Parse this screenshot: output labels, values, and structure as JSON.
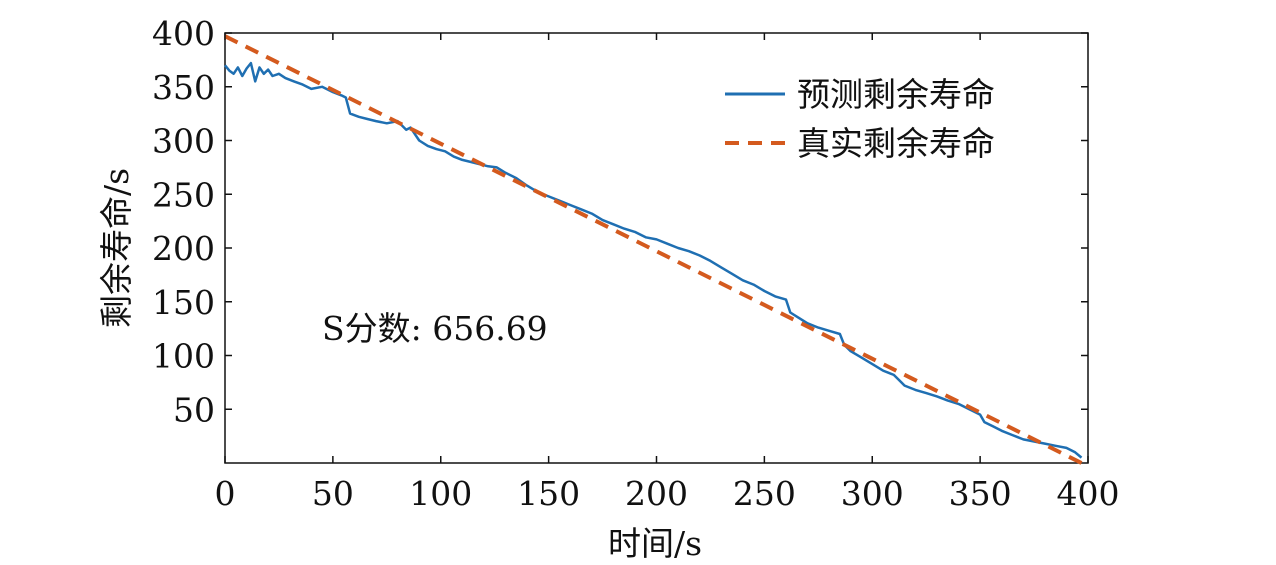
{
  "chart_data": {
    "type": "line",
    "xlabel": "时间/s",
    "ylabel": "剩余寿命/s",
    "xlim": [
      0,
      400
    ],
    "ylim": [
      0,
      400
    ],
    "xticks": [
      "0",
      "50",
      "100",
      "150",
      "200",
      "250",
      "300",
      "350",
      "400"
    ],
    "yticks": [
      "50",
      "100",
      "150",
      "200",
      "250",
      "300",
      "350",
      "400"
    ],
    "grid": false,
    "legend_position": "top-right",
    "annotation": "S分数: 656.69",
    "series": [
      {
        "name": "预测剩余寿命",
        "color": "#1f6fb2",
        "style": "solid",
        "x": [
          0,
          2,
          4,
          6,
          8,
          10,
          12,
          14,
          16,
          18,
          20,
          22,
          25,
          28,
          32,
          36,
          40,
          45,
          50,
          54,
          56,
          58,
          62,
          66,
          70,
          75,
          80,
          84,
          86,
          90,
          94,
          98,
          102,
          106,
          110,
          114,
          118,
          122,
          126,
          130,
          135,
          140,
          145,
          150,
          155,
          160,
          165,
          170,
          175,
          180,
          185,
          190,
          195,
          200,
          205,
          210,
          215,
          220,
          225,
          230,
          235,
          240,
          245,
          250,
          255,
          260,
          262,
          266,
          270,
          275,
          280,
          285,
          287,
          290,
          295,
          300,
          305,
          310,
          312,
          315,
          320,
          325,
          330,
          335,
          340,
          345,
          350,
          352,
          356,
          360,
          365,
          370,
          375,
          380,
          385,
          390,
          394,
          397
        ],
        "y": [
          370,
          365,
          362,
          368,
          360,
          367,
          372,
          355,
          368,
          362,
          366,
          360,
          362,
          358,
          355,
          352,
          348,
          350,
          345,
          342,
          340,
          325,
          322,
          320,
          318,
          316,
          318,
          310,
          312,
          300,
          295,
          292,
          290,
          285,
          282,
          280,
          278,
          276,
          275,
          270,
          265,
          258,
          252,
          248,
          244,
          240,
          236,
          232,
          226,
          222,
          218,
          215,
          210,
          208,
          204,
          200,
          197,
          193,
          188,
          182,
          176,
          170,
          166,
          160,
          155,
          152,
          140,
          135,
          130,
          126,
          123,
          120,
          110,
          104,
          98,
          92,
          86,
          82,
          78,
          72,
          68,
          65,
          62,
          58,
          55,
          50,
          45,
          38,
          34,
          30,
          26,
          22,
          20,
          18,
          16,
          14,
          10,
          5
        ]
      },
      {
        "name": "真实剩余寿命",
        "color": "#d45a1e",
        "style": "dashed",
        "x": [
          0,
          397
        ],
        "y": [
          397,
          0
        ]
      }
    ]
  }
}
